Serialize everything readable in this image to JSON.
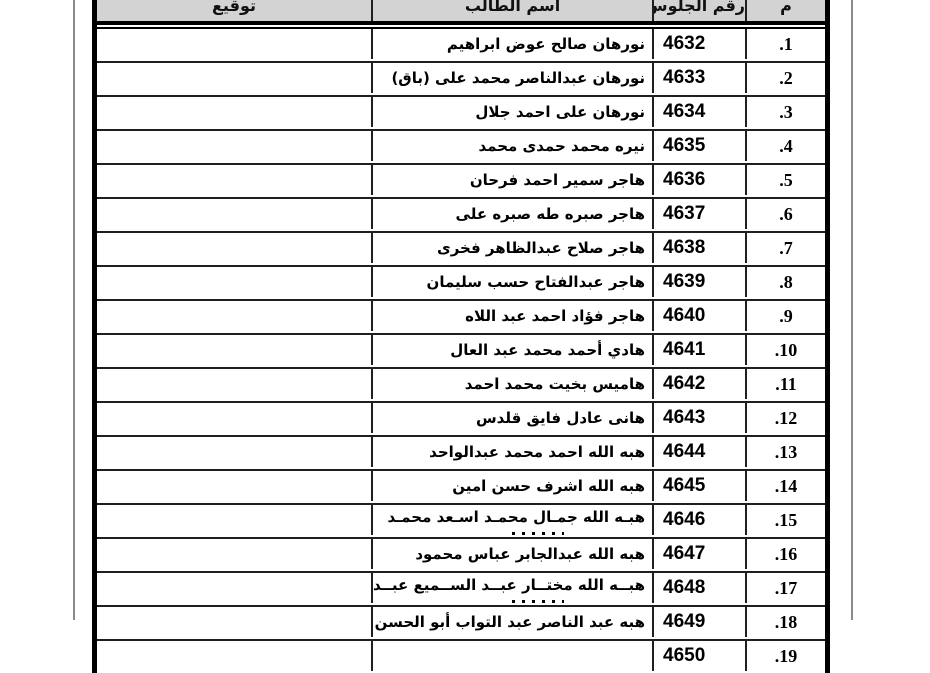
{
  "document": {
    "kind": "attendance-sheet-table",
    "header": {
      "sign": "توقيع",
      "name": "اسم الطالب",
      "seat": "رقم الجلوس",
      "num": "م"
    },
    "rows": [
      {
        "num": ".1",
        "seat": "4632",
        "name": "نورهان صالح عوض ابراهيم",
        "sign": ""
      },
      {
        "num": ".2",
        "seat": "4633",
        "name": "نورهان عبدالناصر محمد على (باق)",
        "sign": ""
      },
      {
        "num": ".3",
        "seat": "4634",
        "name": "نورهان على احمد جلال",
        "sign": ""
      },
      {
        "num": ".4",
        "seat": "4635",
        "name": "نيره محمد حمدى محمد",
        "sign": ""
      },
      {
        "num": ".5",
        "seat": "4636",
        "name": "هاجر سمير احمد فرحان",
        "sign": ""
      },
      {
        "num": ".6",
        "seat": "4637",
        "name": "هاجر صبره طه صبره على",
        "sign": ""
      },
      {
        "num": ".7",
        "seat": "4638",
        "name": "هاجر صلاح عبدالظاهر فخرى",
        "sign": ""
      },
      {
        "num": ".8",
        "seat": "4639",
        "name": "هاجر عبدالفتاح حسب سليمان",
        "sign": ""
      },
      {
        "num": ".9",
        "seat": "4640",
        "name": "هاجر فؤاد احمد عبد اللاه",
        "sign": ""
      },
      {
        "num": ".10",
        "seat": "4641",
        "name": "هادي أحمد محمد عبد العال",
        "sign": ""
      },
      {
        "num": ".11",
        "seat": "4642",
        "name": "هاميس بخيت محمد احمد",
        "sign": ""
      },
      {
        "num": ".12",
        "seat": "4643",
        "name": "هانى عادل فايق قلدس",
        "sign": ""
      },
      {
        "num": ".13",
        "seat": "4644",
        "name": "هبه الله احمد محمد عبدالواحد",
        "sign": ""
      },
      {
        "num": ".14",
        "seat": "4645",
        "name": "هبه الله اشرف حسن امين",
        "sign": ""
      },
      {
        "num": ".15",
        "seat": "4646",
        "name": "هبـه الله جمـال محمـد اسـعد محمـد",
        "sign": "",
        "second_line_clipped": true
      },
      {
        "num": ".16",
        "seat": "4647",
        "name": "هبه الله عبدالجابر عباس محمود",
        "sign": ""
      },
      {
        "num": ".17",
        "seat": "4648",
        "name": "هبــه الله مختــار عبــد الســميع عبــد",
        "sign": "",
        "second_line_clipped": true
      },
      {
        "num": ".18",
        "seat": "4649",
        "name": "هبه عبد الناصر عبد التواب أبو الحسن",
        "sign": ""
      },
      {
        "num": ".19",
        "seat": "4650",
        "name": "",
        "sign": "",
        "partial_bottom_row": true
      }
    ],
    "colors": {
      "header_bg": "#d3d3d3",
      "table_border": "#000000",
      "row_divider": "#1f1f1f",
      "page_rule": "#8a8a8a",
      "text": "#000000"
    }
  }
}
